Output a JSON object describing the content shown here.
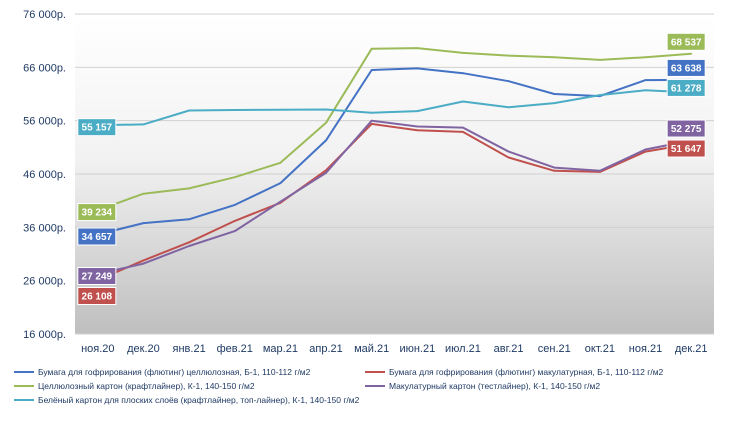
{
  "chart_data": {
    "type": "line",
    "title": "",
    "xlabel": "",
    "ylabel": "",
    "ylim": [
      16000,
      76000
    ],
    "yticks": [
      16000,
      26000,
      36000,
      46000,
      56000,
      66000,
      76000
    ],
    "ytick_labels": [
      "16 000р.",
      "26 000р.",
      "36 000р.",
      "46 000р.",
      "56 000р.",
      "66 000р.",
      "76 000р."
    ],
    "categories": [
      "ноя.20",
      "дек.20",
      "янв.21",
      "фев.21",
      "мар.21",
      "апр.21",
      "май.21",
      "июн.21",
      "июл.21",
      "авг.21",
      "сен.21",
      "окт.21",
      "ноя.21",
      "дек.21"
    ],
    "grid": true,
    "legend_position": "bottom",
    "series": [
      {
        "name": "Бумага для гофрирования (флютинг) целлюлозная, Б-1, 110-112 г/м2",
        "color": "#4472c4",
        "values": [
          34657,
          36800,
          37500,
          40200,
          44300,
          52300,
          65500,
          65800,
          64900,
          63400,
          61000,
          60600,
          63600,
          63638
        ],
        "start_label": "34 657",
        "end_label": "63 638"
      },
      {
        "name": "Бумага для гофрирования (флютинг) макулатурная, Б-1, 110-112 г/м2",
        "color": "#c0504d",
        "values": [
          26108,
          29800,
          33200,
          37200,
          40600,
          46700,
          55400,
          54200,
          53900,
          49100,
          46600,
          46400,
          50200,
          51647
        ],
        "start_label": "26 108",
        "end_label": "51 647"
      },
      {
        "name": "Целлюлозный картон (крафтлайнер), К-1, 140-150 г/м2",
        "color": "#9bbb59",
        "values": [
          39234,
          42300,
          43300,
          45400,
          48100,
          55600,
          69500,
          69600,
          68700,
          68200,
          67900,
          67400,
          67900,
          68537
        ],
        "start_label": "39 234",
        "end_label": "68 537"
      },
      {
        "name": "Макулатурный картон (тестлайнер), К-1, 140-150 г/м2",
        "color": "#8064a2",
        "values": [
          27249,
          29200,
          32500,
          35300,
          40800,
          46200,
          56000,
          54900,
          54700,
          50200,
          47200,
          46600,
          50600,
          52275
        ],
        "start_label": "27 249",
        "end_label": "52 275"
      },
      {
        "name": "Белёный картон для плоских слоёв (крафтлайнер, топ-лайнер), К-1, 140-150 г/м2",
        "color": "#4bacc6",
        "values": [
          55157,
          55300,
          57900,
          58000,
          58050,
          58100,
          57500,
          57800,
          59600,
          58500,
          59300,
          60800,
          61700,
          61278
        ],
        "start_label": "55 157",
        "end_label": "61 278"
      }
    ]
  }
}
